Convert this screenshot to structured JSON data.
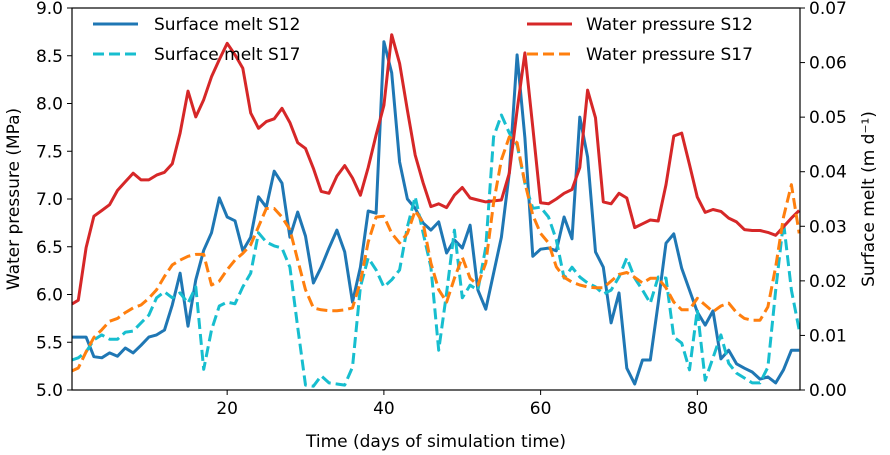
{
  "chart_data": {
    "type": "line",
    "xlabel": "Time (days of simulation time)",
    "ylabel": "Water pressure (MPa)",
    "ylabel_right": "Surface melt (m d⁻¹)",
    "xlim": [
      0.2,
      93.1
    ],
    "ylim": [
      5.0,
      9.0
    ],
    "ylim_right": [
      0.0,
      0.07
    ],
    "xticks": [
      "20",
      "40",
      "60",
      "80"
    ],
    "xtick_values": [
      20,
      40,
      60,
      80
    ],
    "yticks": [
      "5.0",
      "5.5",
      "6.0",
      "6.5",
      "7.0",
      "7.5",
      "8.0",
      "8.5",
      "9.0"
    ],
    "ytick_values": [
      5.0,
      5.5,
      6.0,
      6.5,
      7.0,
      7.5,
      8.0,
      8.5,
      9.0
    ],
    "yticks_right": [
      "0.00",
      "0.01",
      "0.02",
      "0.03",
      "0.04",
      "0.05",
      "0.06",
      "0.07"
    ],
    "ytick_right_values": [
      0,
      0.01,
      0.02,
      0.03,
      0.04,
      0.05,
      0.06,
      0.07
    ],
    "grid": false,
    "legend_left": "top-left",
    "legend_right": "top-right",
    "x": [
      0.2,
      1,
      2,
      3,
      4,
      5,
      6,
      7,
      8,
      9,
      10,
      11,
      12,
      13,
      14,
      15,
      16,
      17,
      18,
      19,
      20,
      21,
      22,
      23,
      24,
      25,
      26,
      27,
      28,
      29,
      30,
      31,
      32,
      33,
      34,
      35,
      36,
      37,
      38,
      39,
      40,
      41,
      42,
      43,
      44,
      45,
      46,
      47,
      48,
      49,
      50,
      51,
      52,
      53,
      54,
      55,
      56,
      57,
      58,
      59,
      60,
      61,
      62,
      63,
      64,
      65,
      66,
      67,
      68,
      69,
      70,
      71,
      72,
      73,
      74,
      75,
      76,
      77,
      78,
      79,
      80,
      81,
      82,
      83,
      84,
      85,
      86,
      87,
      88,
      89,
      90,
      91,
      92,
      93
    ],
    "series": [
      {
        "name": "Surface melt S12",
        "axis": "right",
        "color": "#1f77b4",
        "style": "solid",
        "values": [
          0.0097,
          0.0097,
          0.0097,
          0.0061,
          0.0059,
          0.0068,
          0.0062,
          0.0077,
          0.0068,
          0.0082,
          0.0097,
          0.0101,
          0.011,
          0.0156,
          0.0214,
          0.0117,
          0.0202,
          0.0256,
          0.0288,
          0.0352,
          0.0317,
          0.031,
          0.0255,
          0.028,
          0.0354,
          0.0335,
          0.0401,
          0.0379,
          0.028,
          0.0326,
          0.0282,
          0.0196,
          0.0225,
          0.026,
          0.0293,
          0.0253,
          0.0161,
          0.0225,
          0.0328,
          0.0324,
          0.0638,
          0.0581,
          0.0418,
          0.035,
          0.0333,
          0.0306,
          0.0293,
          0.0308,
          0.0251,
          0.0275,
          0.026,
          0.0302,
          0.0183,
          0.0148,
          0.0214,
          0.028,
          0.0398,
          0.0614,
          0.0462,
          0.0245,
          0.0258,
          0.026,
          0.0255,
          0.0317,
          0.0277,
          0.05,
          0.0427,
          0.0253,
          0.0225,
          0.0123,
          0.0178,
          0.004,
          0.0011,
          0.0055,
          0.0055,
          0.0159,
          0.0269,
          0.0286,
          0.0223,
          0.0183,
          0.0143,
          0.0119,
          0.0145,
          0.0057,
          0.0073,
          0.0048,
          0.004,
          0.0033,
          0.002,
          0.0024,
          0.0013,
          0.0037,
          0.0073,
          0.0073
        ]
      },
      {
        "name": "Surface melt S17",
        "axis": "right",
        "color": "#17becf",
        "style": "dashed",
        "values": [
          0.0055,
          0.0059,
          0.007,
          0.0092,
          0.0101,
          0.0093,
          0.0093,
          0.0106,
          0.0108,
          0.0123,
          0.0137,
          0.0169,
          0.018,
          0.0169,
          0.0178,
          0.0159,
          0.0189,
          0.0038,
          0.011,
          0.0154,
          0.0161,
          0.0158,
          0.0189,
          0.0214,
          0.0288,
          0.0271,
          0.0264,
          0.026,
          0.0225,
          0.0115,
          0.0009,
          0.0007,
          0.0026,
          0.0013,
          0.0011,
          0.0009,
          0.0042,
          0.0189,
          0.0242,
          0.022,
          0.0189,
          0.0202,
          0.022,
          0.0299,
          0.0354,
          0.0288,
          0.0225,
          0.0073,
          0.0178,
          0.0293,
          0.0169,
          0.0192,
          0.0183,
          0.0262,
          0.0464,
          0.0504,
          0.0471,
          0.0449,
          0.0379,
          0.0333,
          0.0335,
          0.0317,
          0.0275,
          0.0205,
          0.0225,
          0.0207,
          0.0196,
          0.0189,
          0.0176,
          0.0183,
          0.0207,
          0.0242,
          0.0205,
          0.0183,
          0.0159,
          0.0207,
          0.0205,
          0.0097,
          0.0086,
          0.0037,
          0.0147,
          0.0018,
          0.0059,
          0.0101,
          0.0049,
          0.0031,
          0.0022,
          0.0013,
          0.0013,
          0.0042,
          0.0183,
          0.0308,
          0.0183,
          0.011
        ]
      },
      {
        "name": "Water pressure S12",
        "axis": "left",
        "color": "#d62728",
        "style": "solid",
        "values": [
          5.9,
          5.94,
          6.49,
          6.82,
          6.88,
          6.94,
          7.09,
          7.18,
          7.27,
          7.2,
          7.2,
          7.25,
          7.28,
          7.37,
          7.69,
          8.13,
          7.86,
          8.04,
          8.28,
          8.46,
          8.63,
          8.51,
          8.37,
          7.9,
          7.74,
          7.81,
          7.84,
          7.95,
          7.8,
          7.59,
          7.53,
          7.32,
          7.08,
          7.06,
          7.24,
          7.35,
          7.22,
          7.04,
          7.33,
          7.67,
          7.98,
          8.72,
          8.42,
          7.93,
          7.46,
          7.17,
          6.92,
          6.95,
          6.91,
          7.04,
          7.12,
          7.01,
          6.99,
          6.97,
          6.98,
          6.99,
          7.27,
          7.93,
          8.53,
          7.75,
          6.96,
          6.95,
          7.0,
          7.06,
          7.1,
          7.33,
          8.14,
          7.85,
          6.97,
          6.95,
          7.06,
          7.01,
          6.7,
          6.74,
          6.78,
          6.77,
          7.15,
          7.66,
          7.69,
          7.36,
          7.02,
          6.86,
          6.89,
          6.87,
          6.8,
          6.76,
          6.68,
          6.67,
          6.67,
          6.65,
          6.62,
          6.71,
          6.8,
          6.88
        ]
      },
      {
        "name": "Water pressure S17",
        "axis": "left",
        "color": "#ff7f0e",
        "style": "dashed",
        "values": [
          5.2,
          5.23,
          5.4,
          5.55,
          5.63,
          5.72,
          5.75,
          5.81,
          5.86,
          5.89,
          5.96,
          6.05,
          6.19,
          6.31,
          6.36,
          6.4,
          6.42,
          6.42,
          6.1,
          6.14,
          6.26,
          6.36,
          6.43,
          6.52,
          6.71,
          6.9,
          6.9,
          6.81,
          6.68,
          6.36,
          6.05,
          5.86,
          5.84,
          5.83,
          5.83,
          5.84,
          5.86,
          6.13,
          6.55,
          6.81,
          6.82,
          6.64,
          6.54,
          6.64,
          6.88,
          6.75,
          6.33,
          6.05,
          5.92,
          6.17,
          6.39,
          6.17,
          6.1,
          6.33,
          6.96,
          7.41,
          7.65,
          7.59,
          7.17,
          6.83,
          6.64,
          6.54,
          6.29,
          6.18,
          6.13,
          6.1,
          6.08,
          6.07,
          6.07,
          6.14,
          6.21,
          6.23,
          6.18,
          6.12,
          6.17,
          6.17,
          6.07,
          5.92,
          5.84,
          5.84,
          5.96,
          5.89,
          5.82,
          5.88,
          5.91,
          5.81,
          5.75,
          5.73,
          5.73,
          5.87,
          6.29,
          6.81,
          7.15,
          6.64
        ]
      }
    ]
  }
}
